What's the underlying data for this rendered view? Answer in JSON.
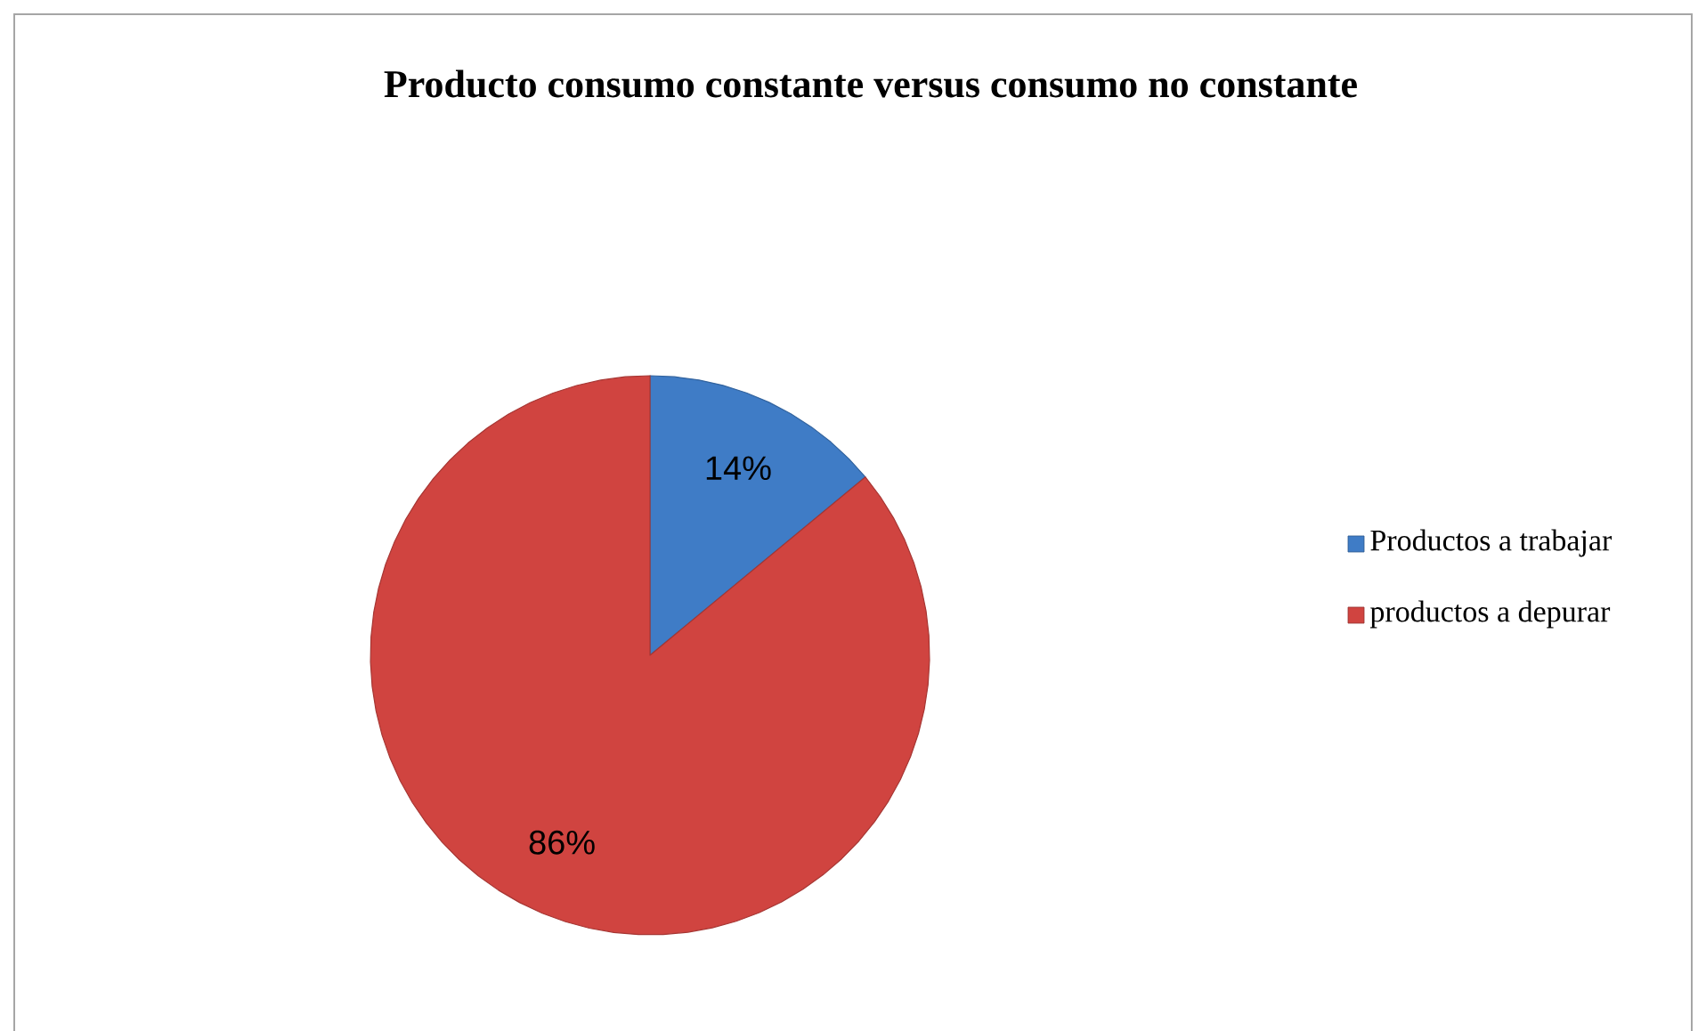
{
  "chart_data": {
    "type": "pie",
    "title": "Producto consumo constante versus consumo no constante",
    "categories": [
      "Productos a trabajar",
      "productos a depurar"
    ],
    "values": [
      14,
      86
    ],
    "colors": [
      "#3f7cc6",
      "#d04440"
    ],
    "value_labels": [
      "14%",
      "86%"
    ],
    "legend": "right"
  }
}
